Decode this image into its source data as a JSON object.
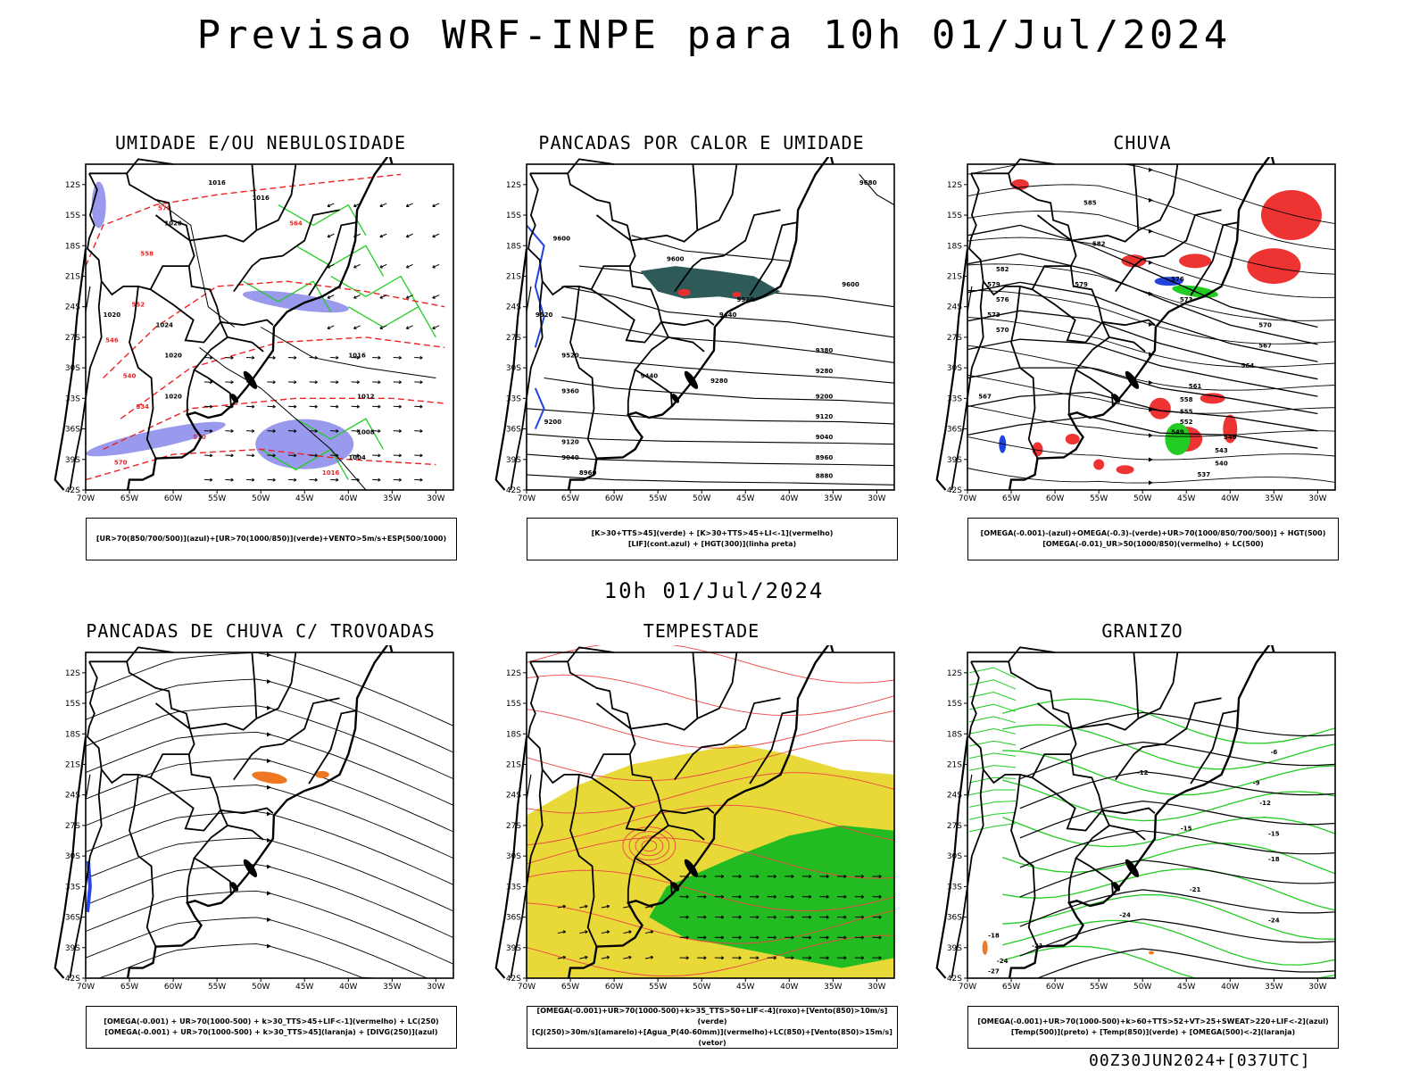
{
  "title": "Previsao WRF-INPE  para 10h 01/Jul/2024",
  "mid_title": "10h 01/Jul/2024",
  "footer": "00Z30JUN2024+[037UTC]",
  "axes": {
    "lat_labels": [
      "12S",
      "15S",
      "18S",
      "21S",
      "24S",
      "27S",
      "30S",
      "33S",
      "36S",
      "39S",
      "42S"
    ],
    "lon_labels": [
      "70W",
      "65W",
      "60W",
      "55W",
      "50W",
      "45W",
      "40W",
      "35W",
      "30W"
    ]
  },
  "panels": [
    {
      "id": "umidade",
      "title": "UMIDADE E/OU NEBULOSIDADE",
      "legend_lines": [
        "[UR>70(850/700/500)](azul)+[UR>70(1000/850)](verde)+VENTO>5m/s+ESP(500/1000)"
      ],
      "contour_labels": [
        "1016",
        "1016",
        "1020",
        "1020",
        "1024",
        "1020",
        "1020",
        "1016",
        "1012",
        "1008",
        "1004",
        "1016",
        "570",
        "570",
        "564",
        "558",
        "552",
        "546",
        "540",
        "534",
        "570"
      ],
      "colors": {
        "humid_high": "#9999ee",
        "humid_low": "#22cc22",
        "thickness": "#ee2222",
        "wind": "#000000"
      }
    },
    {
      "id": "pancadas_calor",
      "title": "PANCADAS POR CALOR E UMIDADE",
      "legend_lines": [
        "[K>30+TTS>45](verde) + [K>30+TTS>45+LI<-1](vermelho)",
        "[LIF](cont.azul) + [HGT(300)](linha preta)"
      ],
      "contour_labels": [
        "9680",
        "9600",
        "9600",
        "9600",
        "9520",
        "9520",
        "9440",
        "9520",
        "9440",
        "9380",
        "9360",
        "9280",
        "9280",
        "9200",
        "9200",
        "9120",
        "9120",
        "9040",
        "9040",
        "8960",
        "8960",
        "8880"
      ],
      "colors": {
        "warm": "#2f5a5a",
        "red": "#e83030",
        "lif": "#2244dd"
      }
    },
    {
      "id": "chuva",
      "title": "CHUVA",
      "legend_lines": [
        "[OMEGA(-0.001)-(azul)+OMEGA(-0.3)-(verde)+UR>70(1000/850/700/500)] + HGT(500)",
        "[OMEGA(-0.01)_UR>50(1000/850)(vermelho) + LC(500)"
      ],
      "contour_labels": [
        "585",
        "582",
        "579",
        "576",
        "573",
        "570",
        "567",
        "564",
        "561",
        "558",
        "555",
        "552",
        "549",
        "546",
        "543",
        "540",
        "537",
        "582",
        "579",
        "576",
        "573",
        "570",
        "567"
      ],
      "colors": {
        "rain": "#ee3333",
        "green": "#22cc22",
        "blue": "#2244dd"
      }
    },
    {
      "id": "trovoadas",
      "title": "PANCADAS DE CHUVA C/ TROVOADAS",
      "legend_lines": [
        "[OMEGA(-0.001) + UR>70(1000-500) + k>30_TTS>45+LIF<-1](vermelho) + LC(250)",
        "[OMEGA(-0.001) + UR>70(1000-500) + k>30_TTS>45](laranja) + [DIVG(250)](azul)"
      ],
      "contour_labels": [],
      "colors": {
        "orange": "#ee7722",
        "blue": "#2244ee"
      }
    },
    {
      "id": "tempestade",
      "title": "TEMPESTADE",
      "legend_lines": [
        "[OMEGA(-0.001)+UR>70(1000-500)+k>35_TTS>50+LIF<-4](roxo)+[Vento(850)>10m/s](verde)",
        "[CJ(250)>30m/s](amarelo)+[Agua_P(40-60mm)](vermelho)+LC(850)+[Vento(850)>15m/s](vetor)"
      ],
      "contour_labels": [],
      "colors": {
        "yellow": "#e8d838",
        "green": "#22bb22",
        "streamline": "#ee4444"
      }
    },
    {
      "id": "granizo",
      "title": "GRANIZO",
      "legend_lines": [
        "[OMEGA(-0.001)+UR>70(1000-500)+k>60+TTS>52+VT>25+SWEAT>220+LIF<-2](azul)",
        "[Temp(500)](preto) + [Temp(850)](verde) + [OMEGA(500)<-2](laranja)"
      ],
      "contour_labels": [
        "-6",
        "-9",
        "-12",
        "-12",
        "-15",
        "-15",
        "-18",
        "-21",
        "-24",
        "-24",
        "-18",
        "-21",
        "-24",
        "-27"
      ],
      "colors": {
        "temp850": "#22cc22",
        "temp500": "#000000",
        "orange": "#ee7722"
      }
    }
  ]
}
